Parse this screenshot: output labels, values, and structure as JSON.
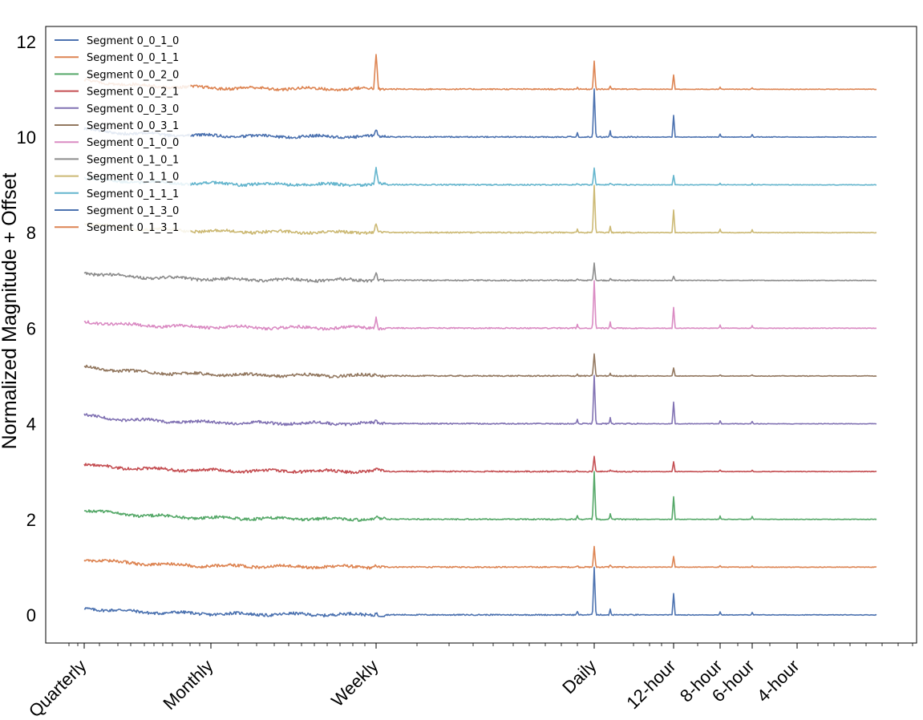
{
  "chart_data": {
    "type": "line",
    "title": "",
    "xlabel": "",
    "ylabel": "Normalized Magnitude + Offset",
    "x_scale": "log",
    "grid": false,
    "legend_position": "upper-left",
    "yticks": [
      0,
      2,
      4,
      6,
      8,
      10,
      12
    ],
    "ylim": [
      -0.6,
      12.3
    ],
    "x_ticks": [
      {
        "label": "Quarterly"
      },
      {
        "label": "Monthly"
      },
      {
        "label": "Weekly"
      },
      {
        "label": "Daily"
      },
      {
        "label": "12-hour"
      },
      {
        "label": "8-hour"
      },
      {
        "label": "6-hour"
      },
      {
        "label": "4-hour"
      }
    ],
    "series": [
      {
        "name": "Segment 0_0_1_0",
        "color": "#4c72b0",
        "offset": 0,
        "peaks": {
          "weekly": 0.05,
          "daily": 1.0,
          "half_day": 0.45
        }
      },
      {
        "name": "Segment 0_0_1_1",
        "color": "#dd8452",
        "offset": 1,
        "peaks": {
          "weekly": 0.05,
          "daily": 0.42,
          "half_day": 0.22
        }
      },
      {
        "name": "Segment 0_0_2_0",
        "color": "#55a868",
        "offset": 2,
        "peaks": {
          "weekly": 0.05,
          "daily": 1.0,
          "half_day": 0.47
        }
      },
      {
        "name": "Segment 0_0_2_1",
        "color": "#c44e52",
        "offset": 3,
        "peaks": {
          "weekly": 0.04,
          "daily": 0.32,
          "half_day": 0.2
        }
      },
      {
        "name": "Segment 0_0_3_0",
        "color": "#8172b3",
        "offset": 4,
        "peaks": {
          "weekly": 0.04,
          "daily": 1.0,
          "half_day": 0.45
        }
      },
      {
        "name": "Segment 0_0_3_1",
        "color": "#937860",
        "offset": 5,
        "peaks": {
          "weekly": 0.04,
          "daily": 0.47,
          "half_day": 0.17
        }
      },
      {
        "name": "Segment 0_1_0_0",
        "color": "#da8bc3",
        "offset": 6,
        "peaks": {
          "weekly": 0.22,
          "daily": 1.0,
          "half_day": 0.43
        }
      },
      {
        "name": "Segment 0_1_0_1",
        "color": "#8c8c8c",
        "offset": 7,
        "peaks": {
          "weekly": 0.18,
          "daily": 0.35,
          "half_day": 0.08
        }
      },
      {
        "name": "Segment 0_1_1_0",
        "color": "#ccb974",
        "offset": 8,
        "peaks": {
          "weekly": 0.18,
          "daily": 1.0,
          "half_day": 0.47
        }
      },
      {
        "name": "Segment 0_1_1_1",
        "color": "#64b5cd",
        "offset": 9,
        "peaks": {
          "weekly": 0.35,
          "daily": 0.35,
          "half_day": 0.2
        }
      },
      {
        "name": "Segment 0_1_3_0",
        "color": "#4c72b0",
        "offset": 10,
        "peaks": {
          "weekly": 0.15,
          "daily": 1.0,
          "half_day": 0.45
        }
      },
      {
        "name": "Segment 0_1_3_1",
        "color": "#dd8452",
        "offset": 11,
        "peaks": {
          "weekly": 0.72,
          "daily": 0.6,
          "half_day": 0.3
        }
      }
    ]
  }
}
